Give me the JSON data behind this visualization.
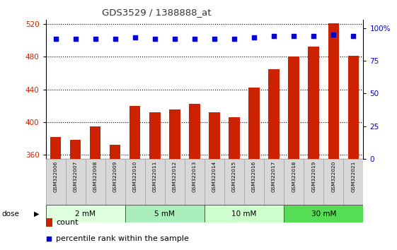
{
  "title": "GDS3529 / 1388888_at",
  "samples": [
    "GSM322006",
    "GSM322007",
    "GSM322008",
    "GSM322009",
    "GSM322010",
    "GSM322011",
    "GSM322012",
    "GSM322013",
    "GSM322014",
    "GSM322015",
    "GSM322016",
    "GSM322017",
    "GSM322018",
    "GSM322019",
    "GSM322020",
    "GSM322021"
  ],
  "counts": [
    382,
    378,
    395,
    372,
    420,
    412,
    415,
    422,
    412,
    406,
    442,
    465,
    480,
    492,
    521,
    481
  ],
  "percentile_ranks": [
    92,
    92,
    92,
    92,
    93,
    92,
    92,
    92,
    92,
    92,
    93,
    94,
    94,
    94,
    95,
    94
  ],
  "dose_groups": [
    {
      "label": "2 mM",
      "start": 0,
      "end": 3,
      "color": "#ddffdd"
    },
    {
      "label": "5 mM",
      "start": 4,
      "end": 7,
      "color": "#aaeebb"
    },
    {
      "label": "10 mM",
      "start": 8,
      "end": 11,
      "color": "#ccffcc"
    },
    {
      "label": "30 mM",
      "start": 12,
      "end": 15,
      "color": "#55dd55"
    }
  ],
  "bar_color": "#cc2200",
  "dot_color": "#0000cc",
  "ylim_left": [
    355,
    525
  ],
  "yticks_left": [
    360,
    400,
    440,
    480,
    520
  ],
  "ylim_right": [
    0,
    106.25
  ],
  "yticks_right": [
    0,
    25,
    50,
    75,
    100
  ],
  "yright_labels": [
    "0",
    "25",
    "50",
    "75",
    "100%"
  ],
  "bar_bottom": 355,
  "bar_width": 0.55
}
